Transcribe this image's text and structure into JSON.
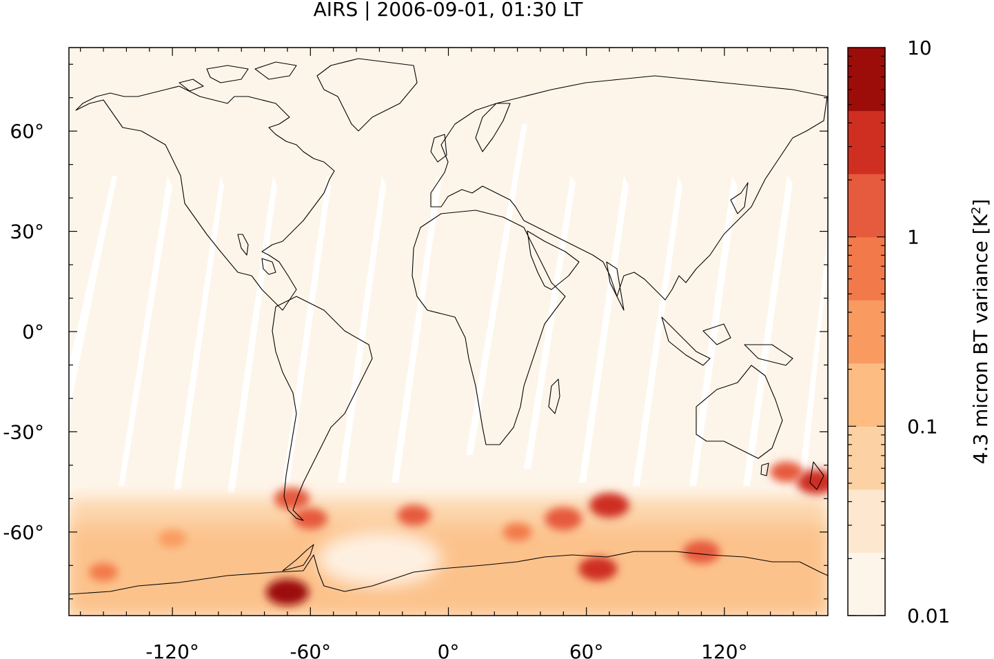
{
  "title": "AIRS | 2006-09-01, 01:30 LT",
  "colors": {
    "background": "#fef5ea",
    "coastline": "#000000",
    "swath_gap": "#ffffff",
    "colorbar": [
      "#fef5ea",
      "#fde7cf",
      "#fcd2a4",
      "#fcbc82",
      "#f99b61",
      "#f27a4a",
      "#e65a3d",
      "#cf2f20",
      "#9c0d0a"
    ]
  },
  "colorbar": {
    "label": "4.3 micron BT variance [K",
    "label_sup": "2",
    "label_end": "]",
    "tick_labels": [
      "10",
      "1",
      "0.1",
      "0.01"
    ],
    "tick_values": [
      10,
      1,
      0.1,
      0.01
    ],
    "scale": "log",
    "range": [
      0.01,
      10
    ]
  },
  "chart_data": {
    "type": "heatmap",
    "title": "AIRS | 2006-09-01, 01:30 LT",
    "projection": "equirectangular",
    "xlim": [
      -165,
      165
    ],
    "ylim": [
      -85,
      85
    ],
    "x_ticks": [
      -120,
      -60,
      0,
      60,
      120
    ],
    "x_tick_labels": [
      "-120°",
      "-60°",
      "0°",
      "60°",
      "120°"
    ],
    "y_ticks": [
      60,
      30,
      0,
      -30,
      -60
    ],
    "y_tick_labels": [
      "60°",
      "30°",
      "0°",
      "-30°",
      "-60°"
    ],
    "colorbar_label": "4.3 micron BT variance [K²]",
    "colorbar_scale": "log",
    "colorbar_range": [
      0.01,
      10
    ],
    "hotspots": [
      {
        "lon": -70,
        "lat": -78,
        "value": 5
      },
      {
        "lon": -68,
        "lat": -50,
        "value": 1.5
      },
      {
        "lon": -60,
        "lat": -56,
        "value": 1.2
      },
      {
        "lon": -15,
        "lat": -55,
        "value": 1.0
      },
      {
        "lon": 50,
        "lat": -56,
        "value": 2.0
      },
      {
        "lon": 70,
        "lat": -52,
        "value": 3.0
      },
      {
        "lon": 65,
        "lat": -71,
        "value": 2.5
      },
      {
        "lon": 110,
        "lat": -66,
        "value": 2.0
      },
      {
        "lon": 160,
        "lat": -45,
        "value": 3.0
      },
      {
        "lon": 147,
        "lat": -42,
        "value": 1.0
      },
      {
        "lon": -150,
        "lat": -72,
        "value": 0.5
      },
      {
        "lon": -120,
        "lat": -62,
        "value": 0.4
      },
      {
        "lon": 30,
        "lat": -60,
        "value": 0.5
      }
    ]
  }
}
